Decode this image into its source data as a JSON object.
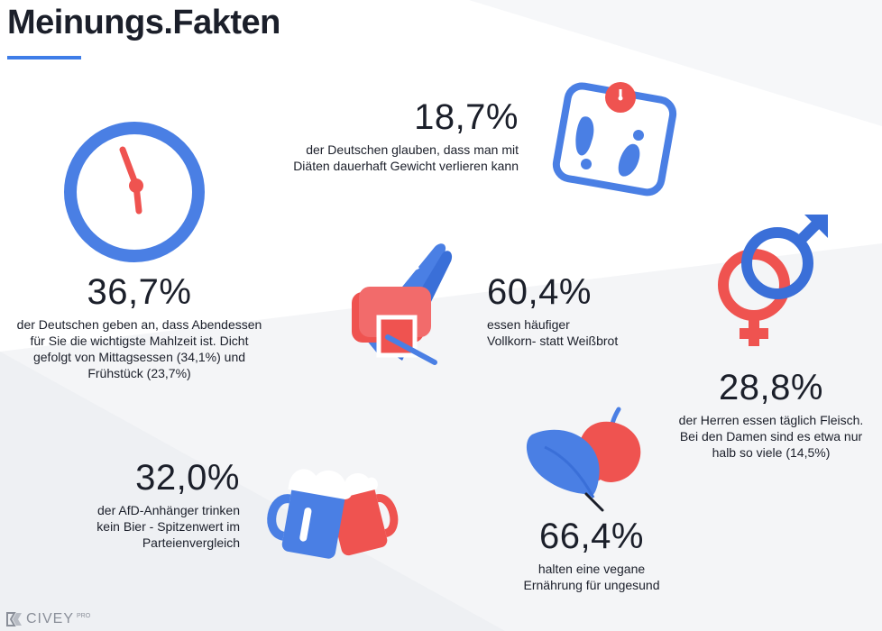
{
  "header": {
    "title": "Meinungs.Fakten"
  },
  "stats": [
    {
      "value": "18,7%",
      "lines": [
        "der Deutschen glauben, dass man mit",
        "Diäten dauerhaft Gewicht verlieren kann"
      ],
      "icon": "scale-icon"
    },
    {
      "value": "36,7%",
      "lines": [
        "der Deutschen geben an, dass Abendessen",
        "für Sie die wichtigste Mahlzeit ist. Dicht",
        "gefolgt von Mittagsessen (34,1%) und",
        "Frühstück (23,7%)"
      ],
      "icon": "clock-icon"
    },
    {
      "value": "60,4%",
      "lines": [
        "essen häufiger",
        "Vollkorn- statt Weißbrot"
      ],
      "icon": "bread-icon"
    },
    {
      "value": "28,8%",
      "lines": [
        "der Herren essen täglich Fleisch.",
        "Bei den Damen sind es etwa nur",
        "halb so viele (14,5%)"
      ],
      "icon": "gender-symbols-icon"
    },
    {
      "value": "32,0%",
      "lines": [
        "der AfD-Anhänger trinken",
        "kein Bier - Spitzenwert im",
        "Parteienvergleich"
      ],
      "icon": "beer-mugs-icon"
    },
    {
      "value": "66,4%",
      "lines": [
        "halten eine vegane",
        "Ernährung für ungesund"
      ],
      "icon": "apple-leaf-icon"
    }
  ],
  "logo": {
    "name": "CIVEY",
    "tag": "PRO"
  },
  "colors": {
    "blue": "#4a7fe4",
    "red": "#ef5350",
    "text": "#1b1f2a"
  }
}
